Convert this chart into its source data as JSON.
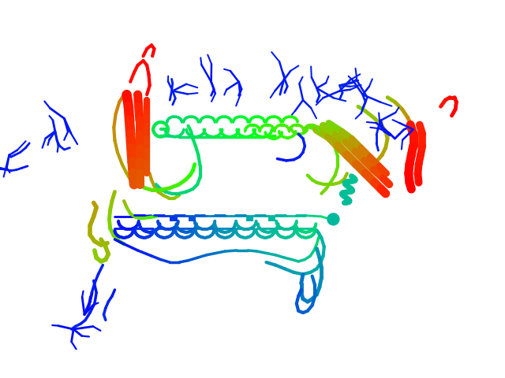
{
  "background_color": "#ffffff",
  "figsize": [
    6.4,
    4.8
  ],
  "dpi": 100,
  "rainbow_colors": [
    "#0000ff",
    "#0022ee",
    "#0044dd",
    "#0066cc",
    "#0088bb",
    "#00aaaa",
    "#00bb99",
    "#00cc88",
    "#00dd66",
    "#00ee44",
    "#00ff22",
    "#22ff00",
    "#44ee00",
    "#66dd00",
    "#88cc00",
    "#aaaa00",
    "#cc8800",
    "#dd6600",
    "#ee4400",
    "#ff2200",
    "#ff0000"
  ],
  "seed": 42
}
